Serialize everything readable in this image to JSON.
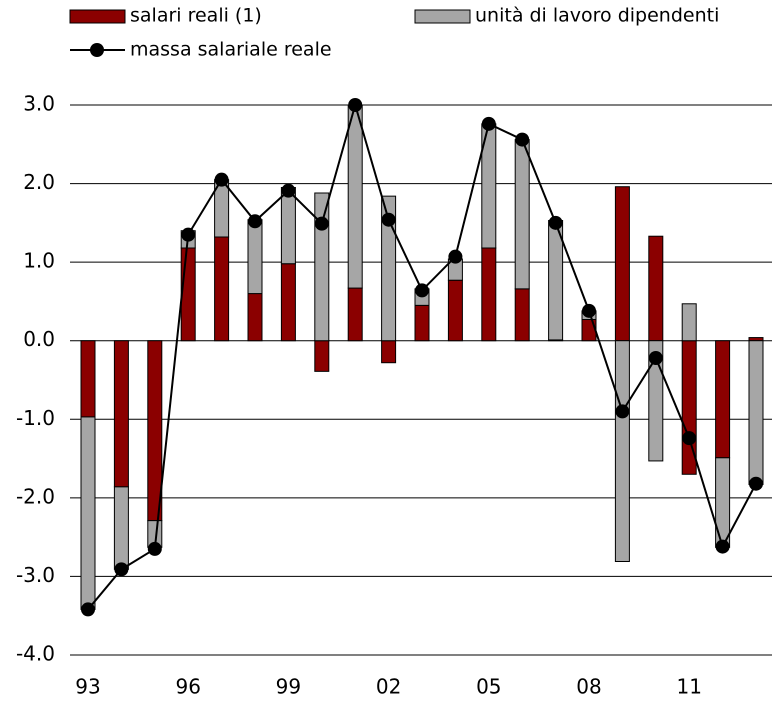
{
  "chart_data": {
    "type": "bar",
    "stacked": true,
    "categories": [
      "93",
      null,
      null,
      "96",
      null,
      null,
      "99",
      null,
      null,
      "02",
      null,
      null,
      "05",
      null,
      null,
      "08",
      null,
      null,
      "11",
      null,
      null
    ],
    "series": [
      {
        "name": "salari reali (1)",
        "color": "#8b0000",
        "type": "bar",
        "values": [
          -0.97,
          -1.86,
          -2.29,
          1.18,
          1.32,
          0.6,
          0.98,
          -0.39,
          0.67,
          -0.28,
          0.45,
          0.77,
          1.18,
          0.66,
          0.01,
          0.27,
          1.96,
          1.33,
          -1.7,
          -1.49,
          0.04
        ]
      },
      {
        "name": "unità di lavoro dipendenti",
        "color": "#a6a6a6",
        "type": "bar",
        "values": [
          -2.45,
          -1.05,
          -0.34,
          0.22,
          0.73,
          0.94,
          0.97,
          1.88,
          2.33,
          1.84,
          0.21,
          0.27,
          1.58,
          1.9,
          1.52,
          0.11,
          -2.81,
          -1.53,
          0.47,
          -1.14,
          -1.83
        ]
      },
      {
        "name": "massa salariale reale",
        "color": "#000000",
        "type": "line",
        "values": [
          -3.42,
          -2.91,
          -2.65,
          1.35,
          2.05,
          1.52,
          1.91,
          1.49,
          3.0,
          1.54,
          0.64,
          1.07,
          2.76,
          2.56,
          1.5,
          0.38,
          -0.9,
          -0.22,
          -1.24,
          -2.62,
          -1.82
        ]
      }
    ],
    "ylim": [
      -4,
      3
    ],
    "yticks": [
      {
        "value": -4,
        "label": "-4.0"
      },
      {
        "value": -3,
        "label": "-3.0"
      },
      {
        "value": -2,
        "label": "-2.0"
      },
      {
        "value": -1,
        "label": "-1.0"
      },
      {
        "value": 0,
        "label": "0.0"
      },
      {
        "value": 1,
        "label": "1.0"
      },
      {
        "value": 2,
        "label": "2.0"
      },
      {
        "value": 3,
        "label": "3.0"
      }
    ],
    "grid": true,
    "legend": "top"
  }
}
